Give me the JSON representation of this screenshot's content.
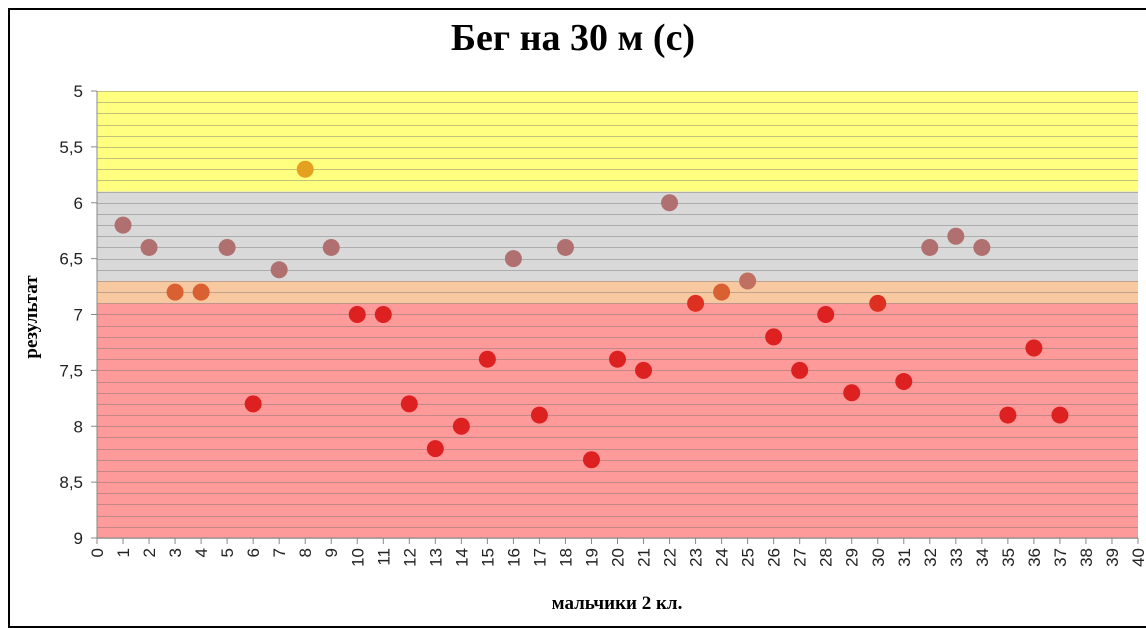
{
  "chart_data": {
    "type": "scatter",
    "title": "Бег на 30 м (с)",
    "xlabel": "мальчики 2 кл.",
    "ylabel": "результат",
    "xlim": [
      0,
      40
    ],
    "ylim": [
      5,
      9
    ],
    "y_inverted": true,
    "x_ticks": [
      0,
      1,
      2,
      3,
      4,
      5,
      6,
      7,
      8,
      9,
      10,
      11,
      12,
      13,
      14,
      15,
      16,
      17,
      18,
      19,
      20,
      21,
      22,
      23,
      24,
      25,
      26,
      27,
      28,
      29,
      30,
      31,
      32,
      33,
      34,
      35,
      36,
      37,
      38,
      39,
      40
    ],
    "y_ticks": [
      "5",
      "5,5",
      "6",
      "6,5",
      "7",
      "7,5",
      "8",
      "8,5",
      "9"
    ],
    "y_tick_values": [
      5,
      5.5,
      6,
      6.5,
      7,
      7.5,
      8,
      8.5,
      9
    ],
    "grid": "horizontal minor lines every 0.1",
    "bands": [
      {
        "from": 5.0,
        "to": 5.9,
        "color": "#ffff80"
      },
      {
        "from": 5.9,
        "to": 6.7,
        "color": "#d9d9d9"
      },
      {
        "from": 6.7,
        "to": 6.9,
        "color": "#f8c8a0"
      },
      {
        "from": 6.9,
        "to": 9.0,
        "color": "#ff9a9a"
      }
    ],
    "points": [
      {
        "x": 1,
        "y": 6.2,
        "color": "#b07070"
      },
      {
        "x": 2,
        "y": 6.4,
        "color": "#b07070"
      },
      {
        "x": 3,
        "y": 6.8,
        "color": "#d96030"
      },
      {
        "x": 4,
        "y": 6.8,
        "color": "#d96030"
      },
      {
        "x": 5,
        "y": 6.4,
        "color": "#b07070"
      },
      {
        "x": 6,
        "y": 7.8,
        "color": "#dd2020"
      },
      {
        "x": 7,
        "y": 6.6,
        "color": "#b07070"
      },
      {
        "x": 8,
        "y": 5.7,
        "color": "#e6a020"
      },
      {
        "x": 9,
        "y": 6.4,
        "color": "#b07070"
      },
      {
        "x": 10,
        "y": 7.0,
        "color": "#dd2020"
      },
      {
        "x": 11,
        "y": 7.0,
        "color": "#dd2020"
      },
      {
        "x": 12,
        "y": 7.8,
        "color": "#dd2020"
      },
      {
        "x": 13,
        "y": 8.2,
        "color": "#dd2020"
      },
      {
        "x": 14,
        "y": 8.0,
        "color": "#dd2020"
      },
      {
        "x": 15,
        "y": 7.4,
        "color": "#dd2020"
      },
      {
        "x": 16,
        "y": 6.5,
        "color": "#b07070"
      },
      {
        "x": 17,
        "y": 7.9,
        "color": "#dd2020"
      },
      {
        "x": 18,
        "y": 6.4,
        "color": "#b07070"
      },
      {
        "x": 19,
        "y": 8.3,
        "color": "#dd2020"
      },
      {
        "x": 20,
        "y": 7.4,
        "color": "#dd2020"
      },
      {
        "x": 21,
        "y": 7.5,
        "color": "#dd2020"
      },
      {
        "x": 22,
        "y": 6.0,
        "color": "#b07070"
      },
      {
        "x": 23,
        "y": 6.9,
        "color": "#dd3020"
      },
      {
        "x": 24,
        "y": 6.8,
        "color": "#d96030"
      },
      {
        "x": 25,
        "y": 6.7,
        "color": "#c07060"
      },
      {
        "x": 26,
        "y": 7.2,
        "color": "#dd2020"
      },
      {
        "x": 27,
        "y": 7.5,
        "color": "#dd2020"
      },
      {
        "x": 28,
        "y": 7.0,
        "color": "#dd2020"
      },
      {
        "x": 29,
        "y": 7.7,
        "color": "#dd2020"
      },
      {
        "x": 30,
        "y": 6.9,
        "color": "#dd3020"
      },
      {
        "x": 31,
        "y": 7.6,
        "color": "#dd2020"
      },
      {
        "x": 32,
        "y": 6.4,
        "color": "#b07070"
      },
      {
        "x": 33,
        "y": 6.3,
        "color": "#b07070"
      },
      {
        "x": 34,
        "y": 6.4,
        "color": "#b07070"
      },
      {
        "x": 35,
        "y": 7.9,
        "color": "#dd2020"
      },
      {
        "x": 36,
        "y": 7.3,
        "color": "#dd2020"
      },
      {
        "x": 37,
        "y": 7.9,
        "color": "#dd2020"
      }
    ]
  }
}
